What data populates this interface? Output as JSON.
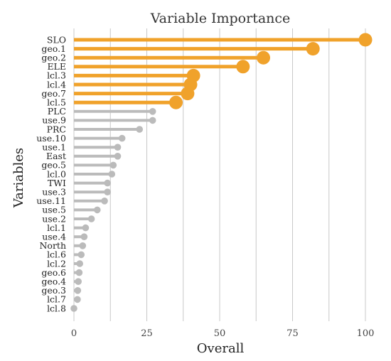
{
  "chart_data": {
    "type": "lollipop",
    "title": "Variable Importance",
    "xlabel": "Overall",
    "ylabel": "Variables",
    "xlim": [
      0,
      100
    ],
    "x_ticks": [
      "0",
      "25",
      "50",
      "75",
      "100"
    ],
    "grid": true,
    "highlight_color": "#f0a22b",
    "muted_color": "#bbbbbb",
    "grid_color": "#c8c8c8",
    "categories": [
      "SLO",
      "geo.1",
      "geo.2",
      "ELE",
      "lcl.3",
      "lcl.4",
      "geo.7",
      "lcl.5",
      "PLC",
      "use.9",
      "PRC",
      "use.10",
      "use.1",
      "East",
      "geo.5",
      "lcl.0",
      "TWI",
      "use.3",
      "use.11",
      "use.5",
      "use.2",
      "lcl.1",
      "use.4",
      "North",
      "lcl.6",
      "lcl.2",
      "geo.6",
      "geo.4",
      "geo.3",
      "lcl.7",
      "lcl.8"
    ],
    "values": [
      100,
      82,
      65,
      58,
      41,
      40,
      39,
      35,
      27,
      27,
      22.5,
      16.5,
      15,
      15,
      13.5,
      13,
      11.5,
      11.5,
      10.5,
      8,
      6,
      4,
      3.5,
      3,
      2.5,
      2,
      1.8,
      1.5,
      1.3,
      1.2,
      0
    ],
    "highlighted": [
      true,
      true,
      true,
      true,
      true,
      true,
      true,
      true,
      false,
      false,
      false,
      false,
      false,
      false,
      false,
      false,
      false,
      false,
      false,
      false,
      false,
      false,
      false,
      false,
      false,
      false,
      false,
      false,
      false,
      false,
      false
    ]
  }
}
